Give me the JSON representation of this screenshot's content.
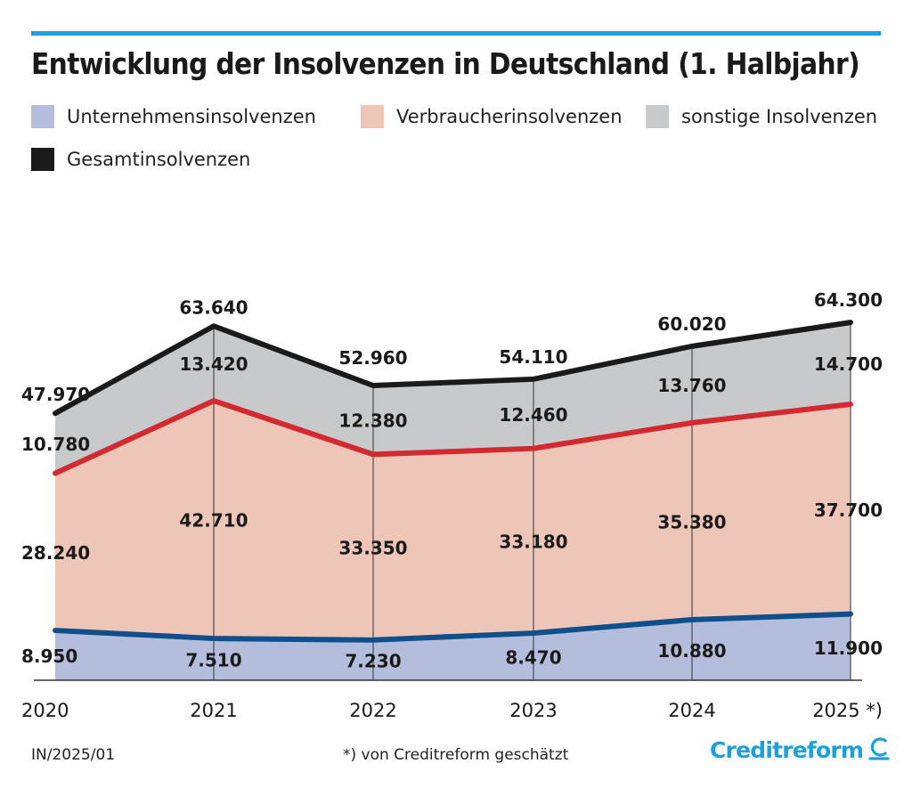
{
  "title": "Entwicklung der Insolvenzen in Deutschland (1. Halbjahr)",
  "legend": [
    {
      "label": "Unternehmensinsolvenzen",
      "color": "#b4bddc"
    },
    {
      "label": "Verbraucherinsolvenzen",
      "color": "#eec6b8"
    },
    {
      "label": "sonstige Insolvenzen",
      "color": "#c8c9cb"
    },
    {
      "label": "Gesamtinsolvenzen",
      "color": "#1a1a1a"
    }
  ],
  "footer": {
    "code": "IN/2025/01",
    "note": "*) von Creditreform geschätzt",
    "logo": "Creditreform"
  },
  "chart_data": {
    "type": "area",
    "stacked": true,
    "title": "Entwicklung der Insolvenzen in Deutschland (1. Halbjahr)",
    "categories": [
      "2020",
      "2021",
      "2022",
      "2023",
      "2024",
      "2025 *)"
    ],
    "ylim": [
      0,
      70000
    ],
    "series": [
      {
        "name": "Unternehmensinsolvenzen",
        "values": [
          8950,
          7510,
          7230,
          8470,
          10880,
          11900
        ],
        "labels": [
          "8.950",
          "7.510",
          "7.230",
          "8.470",
          "10.880",
          "11.900"
        ],
        "fill": "#b4bddc",
        "line": "#0f4f8c"
      },
      {
        "name": "Verbraucherinsolvenzen",
        "values": [
          28240,
          42710,
          33350,
          33180,
          35380,
          37700
        ],
        "labels": [
          "28.240",
          "42.710",
          "33.350",
          "33.180",
          "35.380",
          "37.700"
        ],
        "fill": "#eec6b8",
        "line": "#d32a31"
      },
      {
        "name": "sonstige Insolvenzen",
        "values": [
          10780,
          13420,
          12380,
          12460,
          13760,
          14700
        ],
        "labels": [
          "10.780",
          "13.420",
          "12.380",
          "12.460",
          "13.760",
          "14.700"
        ],
        "fill": "#c8c9cb",
        "line": "#1a1a1a"
      }
    ],
    "totals": {
      "name": "Gesamtinsolvenzen",
      "values": [
        47970,
        63640,
        52960,
        54110,
        60020,
        64300
      ],
      "labels": [
        "47.970",
        "63.640",
        "52.960",
        "54.110",
        "60.020",
        "64.300"
      ]
    }
  }
}
